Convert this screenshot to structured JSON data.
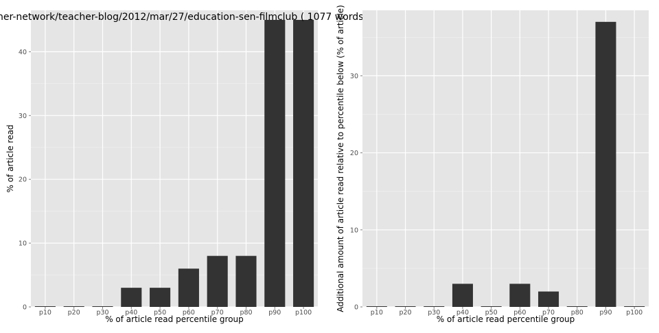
{
  "chart_data": [
    {
      "type": "bar",
      "title": "her-network/teacher-blog/2012/mar/27/education-sen-filmclub ( 1077 words",
      "xlabel": "% of article read percentile group",
      "ylabel": "% of article read",
      "categories": [
        "p10",
        "p20",
        "p30",
        "p40",
        "p50",
        "p60",
        "p70",
        "p80",
        "p90",
        "p100"
      ],
      "values": [
        0,
        0,
        0,
        3,
        3,
        6,
        8,
        8,
        45,
        45
      ],
      "ylim": [
        0,
        46.5
      ],
      "yticks": [
        0,
        10,
        20,
        30,
        40
      ],
      "ytick_labels": [
        "0",
        "10",
        "20",
        "30",
        "40"
      ],
      "grid": true,
      "colors": {
        "bar": "#333333",
        "panel": "#e5e5e5",
        "grid": "#ffffff"
      }
    },
    {
      "type": "bar",
      "title": "",
      "xlabel": "% of article read percentile group",
      "ylabel": "Additional amount of article read relative to percentile below (% of article)",
      "categories": [
        "p10",
        "p20",
        "p30",
        "p40",
        "p50",
        "p60",
        "p70",
        "p80",
        "p90",
        "p100"
      ],
      "values": [
        0,
        0,
        0,
        3,
        0,
        3,
        2,
        0,
        37,
        0
      ],
      "ylim": [
        0,
        38.5
      ],
      "yticks": [
        0,
        10,
        20,
        30
      ],
      "ytick_labels": [
        "0",
        "10",
        "20",
        "30"
      ],
      "grid": true,
      "colors": {
        "bar": "#333333",
        "panel": "#e5e5e5",
        "grid": "#ffffff"
      }
    }
  ]
}
